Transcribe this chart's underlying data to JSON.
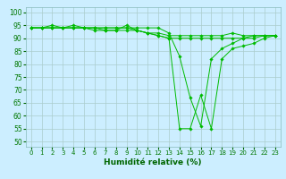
{
  "xlabel": "Humidité relative (%)",
  "background_color": "#cceeff",
  "grid_color": "#aacccc",
  "line_color": "#00bb00",
  "xlim": [
    -0.5,
    23.5
  ],
  "ylim": [
    48,
    102
  ],
  "yticks": [
    50,
    55,
    60,
    65,
    70,
    75,
    80,
    85,
    90,
    95,
    100
  ],
  "xticks": [
    0,
    1,
    2,
    3,
    4,
    5,
    6,
    7,
    8,
    9,
    10,
    11,
    12,
    13,
    14,
    15,
    16,
    17,
    18,
    19,
    20,
    21,
    22,
    23
  ],
  "series": [
    [
      94,
      94,
      95,
      94,
      95,
      94,
      94,
      94,
      94,
      94,
      93,
      92,
      91,
      90,
      55,
      55,
      68,
      55,
      82,
      86,
      87,
      88,
      90,
      91
    ],
    [
      94,
      94,
      94,
      94,
      94,
      94,
      94,
      93,
      93,
      93,
      93,
      92,
      92,
      91,
      91,
      91,
      91,
      91,
      91,
      92,
      91,
      91,
      91,
      91
    ],
    [
      94,
      94,
      94,
      94,
      94,
      94,
      93,
      93,
      93,
      95,
      93,
      92,
      91,
      90,
      90,
      90,
      90,
      90,
      90,
      90,
      90,
      90,
      91,
      91
    ],
    [
      94,
      94,
      94,
      94,
      94,
      94,
      94,
      94,
      94,
      94,
      94,
      94,
      94,
      92,
      83,
      67,
      56,
      82,
      86,
      88,
      90,
      91,
      91,
      91
    ]
  ]
}
